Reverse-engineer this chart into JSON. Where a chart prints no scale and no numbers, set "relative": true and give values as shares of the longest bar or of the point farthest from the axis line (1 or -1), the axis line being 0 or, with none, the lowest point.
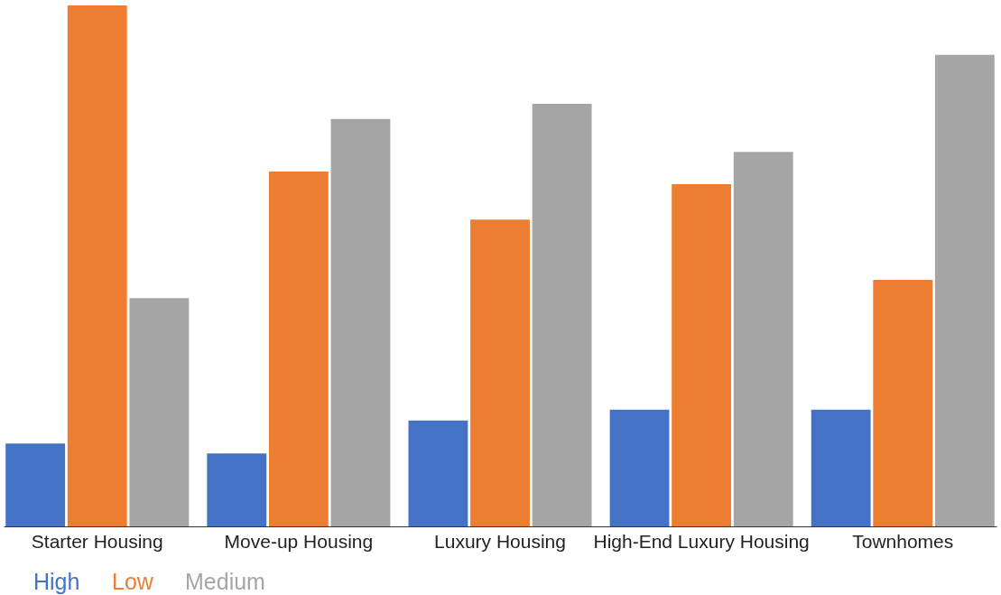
{
  "chart_data": {
    "type": "bar",
    "relative": true,
    "legend": "bottom",
    "categories": [
      "Starter Housing",
      "Move-up Housing",
      "Luxury Housing",
      "High-End Luxury Housing",
      "Townhomes"
    ],
    "series": [
      {
        "name": "High",
        "color": "#4472c4",
        "values": [
          0.159,
          0.14,
          0.203,
          0.224,
          0.224
        ]
      },
      {
        "name": "Low",
        "color": "#ed7d31",
        "values": [
          1,
          0.681,
          0.589,
          0.657,
          0.473
        ]
      },
      {
        "name": "Medium",
        "color": "#a5a5a5",
        "values": [
          0.438,
          0.782,
          0.811,
          0.719,
          0.905
        ]
      }
    ]
  }
}
